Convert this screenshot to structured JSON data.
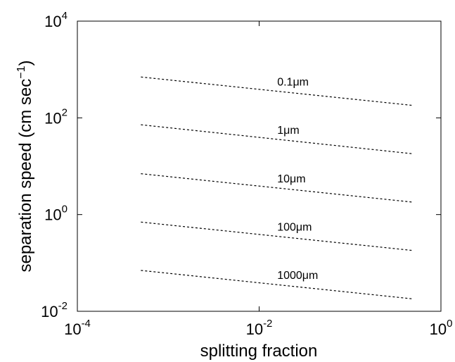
{
  "chart_data": {
    "type": "line",
    "xlabel": "splitting fraction",
    "ylabel": "separation speed (cm sec",
    "ylabel_sup": "−1",
    "ylabel_close": ")",
    "xscale": "log",
    "yscale": "log",
    "xlim": [
      0.0001,
      1
    ],
    "ylim": [
      0.01,
      10000
    ],
    "line_style": "dashed",
    "line_color": "#000000",
    "grid": false,
    "x_ticks": [
      {
        "value": 0.0001,
        "base": "10",
        "exp": "-4"
      },
      {
        "value": 0.01,
        "base": "10",
        "exp": "-2"
      },
      {
        "value": 1,
        "base": "10",
        "exp": "0"
      }
    ],
    "y_ticks": [
      {
        "value": 0.01,
        "base": "10",
        "exp": "-2"
      },
      {
        "value": 1,
        "base": "10",
        "exp": "0"
      },
      {
        "value": 100,
        "base": "10",
        "exp": "2"
      },
      {
        "value": 10000,
        "base": "10",
        "exp": "4"
      }
    ],
    "series": [
      {
        "name": "0.1μm",
        "x": [
          0.0005,
          0.5
        ],
        "y": [
          700,
          180
        ]
      },
      {
        "name": "1μm",
        "x": [
          0.0005,
          0.5
        ],
        "y": [
          72,
          18
        ]
      },
      {
        "name": "10μm",
        "x": [
          0.0005,
          0.5
        ],
        "y": [
          7,
          1.8
        ]
      },
      {
        "name": "100μm",
        "x": [
          0.0005,
          0.5
        ],
        "y": [
          0.7,
          0.18
        ]
      },
      {
        "name": "1000μm",
        "x": [
          0.0005,
          0.5
        ],
        "y": [
          0.07,
          0.018
        ]
      }
    ]
  }
}
